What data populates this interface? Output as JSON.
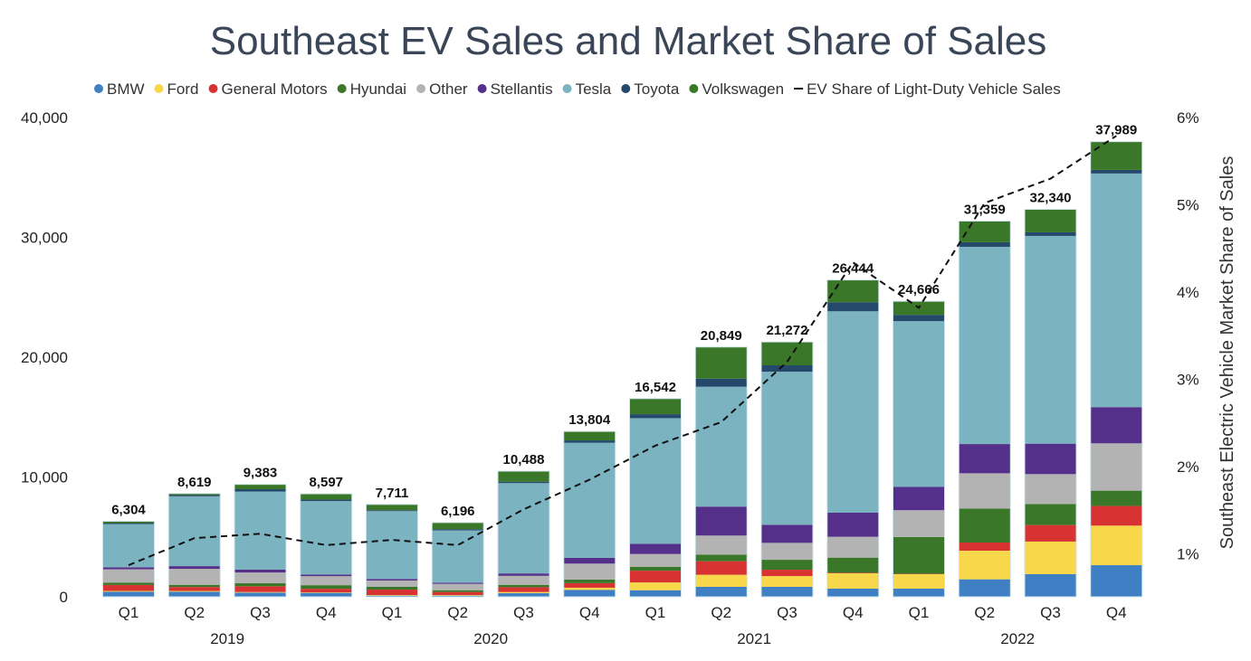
{
  "chart_data": {
    "type": "bar",
    "stacked": true,
    "title": "Southeast EV Sales and Market Share of Sales",
    "xlabel": "",
    "ylabel": "",
    "y2label": "Southeast Electric Vehicle Market Share of Sales",
    "ylim": [
      0,
      40000
    ],
    "y2lim": [
      0,
      6
    ],
    "yticks": [
      "0",
      "10,000",
      "20,000",
      "30,000",
      "40,000"
    ],
    "ytick_values": [
      0,
      10000,
      20000,
      30000,
      40000
    ],
    "y2ticks": [
      "1%",
      "2%",
      "3%",
      "4%",
      "5%",
      "6%"
    ],
    "y2tick_values": [
      1,
      2,
      3,
      4,
      5,
      6
    ],
    "legend_position": "top",
    "grid": false,
    "categories": [
      "Q1",
      "Q2",
      "Q3",
      "Q4",
      "Q1",
      "Q2",
      "Q3",
      "Q4",
      "Q1",
      "Q2",
      "Q3",
      "Q4",
      "Q1",
      "Q2",
      "Q3",
      "Q4"
    ],
    "years": [
      {
        "label": "2019",
        "span": [
          0,
          3
        ]
      },
      {
        "label": "2020",
        "span": [
          4,
          7
        ]
      },
      {
        "label": "2021",
        "span": [
          8,
          11
        ]
      },
      {
        "label": "2022",
        "span": [
          12,
          15
        ]
      }
    ],
    "totals": [
      6304,
      8619,
      9383,
      8597,
      7711,
      6196,
      10488,
      13804,
      16542,
      20849,
      21272,
      26444,
      24666,
      31359,
      32340,
      37989
    ],
    "total_labels": [
      "6,304",
      "8,619",
      "9,383",
      "8,597",
      "7,711",
      "6,196",
      "10,488",
      "13,804",
      "16,542",
      "20,849",
      "21,272",
      "26,444",
      "24,666",
      "31,359",
      "32,340",
      "37,989"
    ],
    "series": [
      {
        "name": "BMW",
        "color": "#3f80c4",
        "values": [
          430,
          430,
          350,
          330,
          100,
          100,
          300,
          580,
          550,
          830,
          830,
          680,
          680,
          1460,
          1890,
          2640
        ]
      },
      {
        "name": "Ford",
        "color": "#f8d84a",
        "values": [
          60,
          60,
          50,
          40,
          50,
          50,
          100,
          180,
          650,
          1010,
          900,
          1280,
          1210,
          2390,
          2720,
          3300
        ]
      },
      {
        "name": "General Motors",
        "color": "#d83232",
        "values": [
          500,
          330,
          480,
          300,
          450,
          250,
          400,
          380,
          980,
          1130,
          530,
          50,
          30,
          680,
          1380,
          1640
        ]
      },
      {
        "name": "Hyundai",
        "color": "#3a7728",
        "values": [
          180,
          180,
          250,
          300,
          230,
          150,
          200,
          300,
          330,
          550,
          830,
          1260,
          3070,
          2840,
          1760,
          1280
        ]
      },
      {
        "name": "Other",
        "color": "#b3b3b3",
        "values": [
          1130,
          1330,
          900,
          750,
          530,
          530,
          750,
          1330,
          1060,
          1590,
          1410,
          1740,
          2240,
          2940,
          2490,
          3950
        ]
      },
      {
        "name": "Stellantis",
        "color": "#55308a",
        "values": [
          170,
          230,
          250,
          130,
          130,
          100,
          200,
          480,
          850,
          2420,
          1510,
          2010,
          1940,
          2440,
          2540,
          3020
        ]
      },
      {
        "name": "Tesla",
        "color": "#7bb3c1",
        "values": [
          3600,
          5830,
          6503,
          6137,
          5660,
          4366,
          7538,
          9604,
          10490,
          10000,
          12780,
          16810,
          13836,
          16460,
          17340,
          19500
        ]
      },
      {
        "name": "Toyota",
        "color": "#24496b",
        "values": [
          80,
          100,
          200,
          130,
          80,
          100,
          120,
          200,
          330,
          680,
          530,
          750,
          530,
          380,
          300,
          300
        ]
      },
      {
        "name": "Volkswagen",
        "color": "#3a7728",
        "values": [
          154,
          129,
          400,
          480,
          481,
          550,
          880,
          750,
          1302,
          2639,
          1951,
          1864,
          1130,
          1769,
          1920,
          2359
        ]
      }
    ],
    "line": {
      "name": "EV Share of Light-Duty Vehicle Sales",
      "axis": "right",
      "color": "#111111",
      "style": "dashed",
      "values": [
        0.87,
        1.18,
        1.23,
        1.1,
        1.16,
        1.1,
        1.51,
        1.85,
        2.24,
        2.51,
        3.2,
        4.34,
        3.82,
        5.02,
        5.3,
        5.79
      ]
    }
  }
}
